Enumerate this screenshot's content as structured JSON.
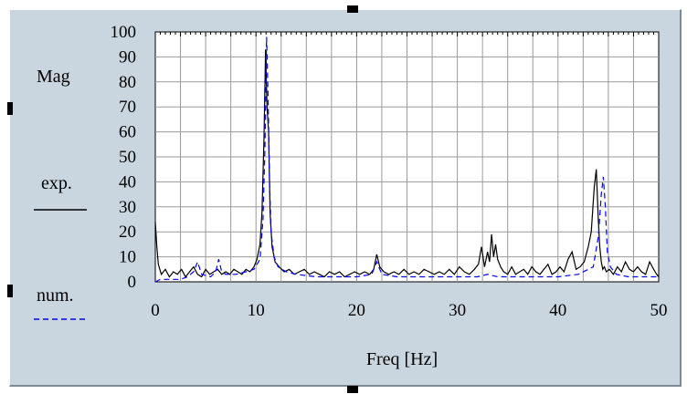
{
  "chart_data": {
    "type": "line",
    "xlabel": "Freq [Hz]",
    "ylabel": "Mag",
    "xlim": [
      0,
      50
    ],
    "ylim": [
      0,
      100
    ],
    "x_ticks": [
      0,
      10,
      20,
      30,
      40,
      50
    ],
    "y_ticks": [
      0,
      10,
      20,
      30,
      40,
      50,
      60,
      70,
      80,
      90,
      100
    ],
    "grid": true,
    "legend": "left",
    "series": [
      {
        "name": "exp.",
        "color": "#000000",
        "style": "solid",
        "x": [
          0,
          0.15,
          0.3,
          0.6,
          1.0,
          1.4,
          1.8,
          2.2,
          2.6,
          3.0,
          3.4,
          3.8,
          4.2,
          4.6,
          5.0,
          5.4,
          5.8,
          6.2,
          6.6,
          7.0,
          7.4,
          7.8,
          8.2,
          8.6,
          9.0,
          9.4,
          9.8,
          10.1,
          10.4,
          10.6,
          10.8,
          10.95,
          11.1,
          11.25,
          11.4,
          11.6,
          11.9,
          12.3,
          12.8,
          13.3,
          13.8,
          14.3,
          14.8,
          15.3,
          15.8,
          16.3,
          16.8,
          17.3,
          17.8,
          18.3,
          18.8,
          19.3,
          19.8,
          20.3,
          20.8,
          21.3,
          21.7,
          22.0,
          22.3,
          22.7,
          23.2,
          23.7,
          24.2,
          24.7,
          25.2,
          25.7,
          26.2,
          26.7,
          27.2,
          27.7,
          28.2,
          28.7,
          29.2,
          29.7,
          30.2,
          30.7,
          31.2,
          31.7,
          32.1,
          32.4,
          32.7,
          33.0,
          33.2,
          33.4,
          33.6,
          33.8,
          34.0,
          34.3,
          34.6,
          35.0,
          35.4,
          35.8,
          36.2,
          36.6,
          37.0,
          37.4,
          37.8,
          38.2,
          38.6,
          39.0,
          39.4,
          39.8,
          40.2,
          40.6,
          41.0,
          41.4,
          41.8,
          42.2,
          42.6,
          43.0,
          43.3,
          43.6,
          43.8,
          44.0,
          44.15,
          44.3,
          44.45,
          44.6,
          44.8,
          45.1,
          45.5,
          45.9,
          46.3,
          46.7,
          47.1,
          47.5,
          47.9,
          48.3,
          48.7,
          49.1,
          49.5,
          49.8,
          50
        ],
        "y": [
          24,
          14,
          7,
          3,
          5,
          2,
          4,
          3,
          5,
          2,
          4,
          6,
          3,
          2,
          5,
          3,
          4,
          5,
          3,
          4,
          3,
          5,
          4,
          3,
          5,
          4,
          6,
          9,
          15,
          28,
          58,
          93,
          70,
          60,
          28,
          14,
          8,
          6,
          4,
          5,
          3,
          4,
          5,
          3,
          4,
          3,
          2,
          4,
          3,
          4,
          2,
          3,
          4,
          3,
          4,
          3,
          5,
          11,
          6,
          4,
          3,
          4,
          3,
          5,
          3,
          4,
          3,
          5,
          4,
          3,
          4,
          3,
          5,
          3,
          6,
          4,
          3,
          5,
          7,
          14,
          6,
          12,
          8,
          19,
          10,
          15,
          9,
          6,
          4,
          3,
          6,
          3,
          4,
          5,
          3,
          6,
          4,
          3,
          5,
          7,
          3,
          4,
          6,
          4,
          9,
          12,
          5,
          6,
          8,
          14,
          20,
          38,
          45,
          25,
          14,
          8,
          5,
          6,
          4,
          5,
          3,
          6,
          4,
          8,
          5,
          4,
          6,
          4,
          3,
          8,
          5,
          3,
          2
        ],
        "dash": ""
      },
      {
        "name": "num.",
        "color": "#0000ff",
        "style": "dashed",
        "x": [
          0,
          0.5,
          1.5,
          2.5,
          3.2,
          3.8,
          4.2,
          4.6,
          5.5,
          6.0,
          6.3,
          6.6,
          7.0,
          8.0,
          9.0,
          9.8,
          10.4,
          10.7,
          10.9,
          11.05,
          11.2,
          11.35,
          11.5,
          11.8,
          12.2,
          13.0,
          14.0,
          16.0,
          18.0,
          20.0,
          21.5,
          22.0,
          22.5,
          24.0,
          26.0,
          28.0,
          30.0,
          32.0,
          33.0,
          34.0,
          36.0,
          38.0,
          40.0,
          42.0,
          43.5,
          44.0,
          44.3,
          44.5,
          44.7,
          44.9,
          45.2,
          45.8,
          47.0,
          48.5,
          50
        ],
        "y": [
          0,
          1,
          1,
          1,
          2,
          4,
          8,
          3,
          2,
          4,
          9,
          4,
          3,
          3,
          4,
          5,
          9,
          25,
          55,
          98,
          75,
          40,
          20,
          10,
          6,
          4,
          3,
          2,
          2,
          2,
          3,
          8,
          3,
          2,
          2,
          2,
          2,
          2,
          3,
          2,
          2,
          2,
          2,
          3,
          6,
          18,
          35,
          42,
          30,
          12,
          6,
          3,
          2,
          2,
          2
        ],
        "dash": "6,4"
      }
    ]
  }
}
